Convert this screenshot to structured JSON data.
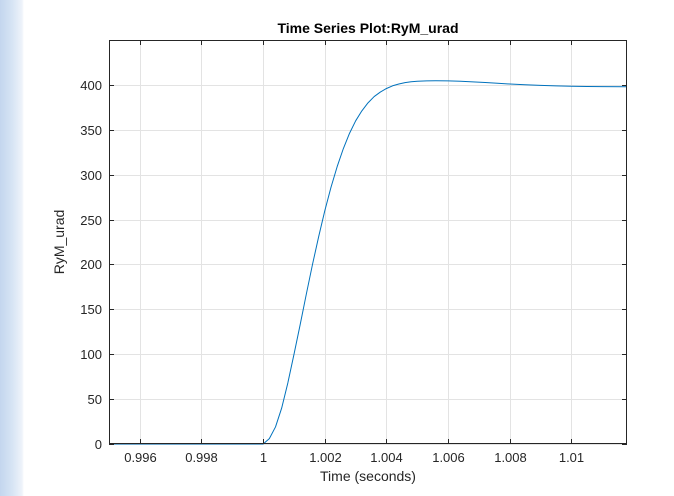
{
  "chart_data": {
    "type": "line",
    "title": "Time Series Plot:RyM_urad",
    "xlabel": "Time (seconds)",
    "ylabel": "RyM_urad",
    "xlim": [
      0.995,
      1.0118
    ],
    "ylim": [
      0,
      450
    ],
    "grid": true,
    "xticks": [
      0.996,
      0.998,
      1,
      1.002,
      1.004,
      1.006,
      1.008,
      1.01
    ],
    "xtick_labels": [
      "0.996",
      "0.998",
      "1",
      "1.002",
      "1.004",
      "1.006",
      "1.008",
      "1.01"
    ],
    "yticks": [
      0,
      50,
      100,
      150,
      200,
      250,
      300,
      350,
      400
    ],
    "ytick_labels": [
      "0",
      "50",
      "100",
      "150",
      "200",
      "250",
      "300",
      "350",
      "400"
    ],
    "series": [
      {
        "color": "#0072bd",
        "x": [
          0.995,
          0.996,
          0.997,
          0.998,
          0.999,
          1.0,
          1.0002,
          1.0004,
          1.0006,
          1.0008,
          1.001,
          1.0012,
          1.0014,
          1.0016,
          1.0018,
          1.002,
          1.0022,
          1.0024,
          1.0026,
          1.0028,
          1.003,
          1.0032,
          1.0034,
          1.0036,
          1.0038,
          1.004,
          1.0042,
          1.0044,
          1.0046,
          1.0048,
          1.005,
          1.0053,
          1.0056,
          1.006,
          1.0064,
          1.0068,
          1.0072,
          1.0076,
          1.008,
          1.0085,
          1.009,
          1.0095,
          1.01,
          1.0105,
          1.011,
          1.0118
        ],
        "y": [
          0,
          0,
          0,
          0,
          0,
          0,
          6,
          19,
          40,
          68,
          100,
          133,
          167,
          200,
          231,
          260,
          286,
          309,
          329,
          346,
          360,
          371,
          380,
          387,
          392,
          396,
          399,
          401,
          402.5,
          403.5,
          404,
          404.5,
          404.6,
          404.5,
          404,
          403.4,
          402.6,
          401.8,
          401,
          400.2,
          399.5,
          398.9,
          398.5,
          398.2,
          398,
          397.9
        ]
      }
    ]
  }
}
